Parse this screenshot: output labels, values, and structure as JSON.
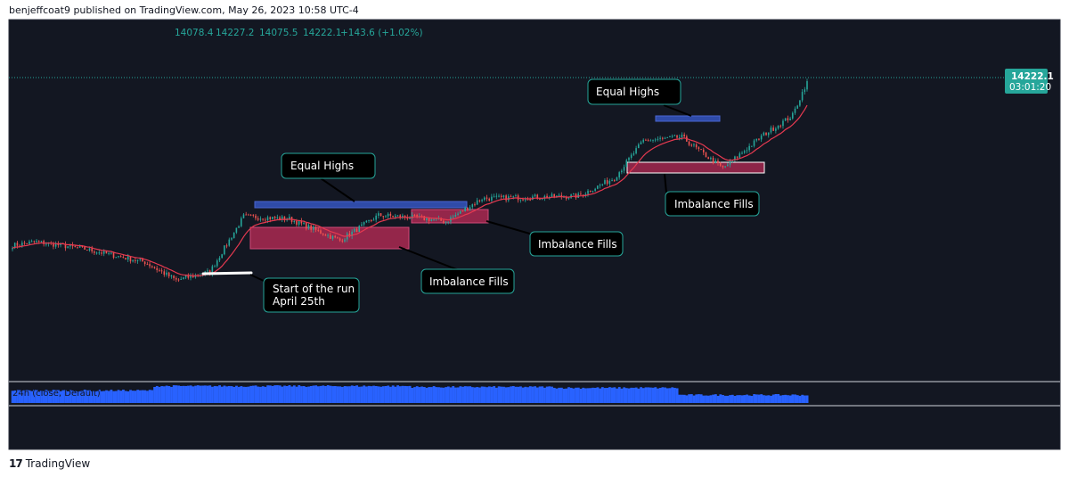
{
  "header": {
    "publisher": "benjeffcoat9 published on TradingView.com, May 26, 2023 10:58 UTC-4"
  },
  "ohlc": {
    "open": "14078.4",
    "high": "14227.2",
    "low": "14075.5",
    "close": "14222.1",
    "change": "+143.6 (+1.02%)"
  },
  "price_label": {
    "price": "14222.1",
    "timer": "03:01:20"
  },
  "annotations": {
    "equal_highs_1": "Equal Highs",
    "equal_highs_2": "Equal Highs",
    "imbalance_1": "Imbalance Fills",
    "imbalance_2": "Imbalance Fills",
    "imbalance_3": "Imbalance Fills",
    "start_line1": "Start of the run",
    "start_line2": "April 25th"
  },
  "volume_label": "24h   (close, Default)",
  "footer": {
    "brand": "TradingView",
    "logo": "17"
  },
  "colors": {
    "background": "#131722",
    "up": "#26a69a",
    "down": "#ef5350",
    "ma": "#e53950",
    "equal_highs_box": "#2f4ba8",
    "imbalance_box": "#a3284f",
    "volume": "#2962ff",
    "callout_border": "#26a69a"
  },
  "chart_data": {
    "type": "candlestick",
    "title": "",
    "last_price": 14222.1,
    "anchors": [
      {
        "i": 0,
        "p": 13540
      },
      {
        "i": 10,
        "p": 13555
      },
      {
        "i": 30,
        "p": 13525
      },
      {
        "i": 55,
        "p": 13470
      },
      {
        "i": 68,
        "p": 13395
      },
      {
        "i": 82,
        "p": 13430
      },
      {
        "i": 96,
        "p": 13660
      },
      {
        "i": 115,
        "p": 13650
      },
      {
        "i": 136,
        "p": 13560
      },
      {
        "i": 152,
        "p": 13665
      },
      {
        "i": 168,
        "p": 13655
      },
      {
        "i": 180,
        "p": 13640
      },
      {
        "i": 195,
        "p": 13735
      },
      {
        "i": 215,
        "p": 13740
      },
      {
        "i": 235,
        "p": 13745
      },
      {
        "i": 250,
        "p": 13820
      },
      {
        "i": 262,
        "p": 13975
      },
      {
        "i": 278,
        "p": 13990
      },
      {
        "i": 285,
        "p": 13935
      },
      {
        "i": 295,
        "p": 13860
      },
      {
        "i": 312,
        "p": 14000
      },
      {
        "i": 324,
        "p": 14080
      },
      {
        "i": 330,
        "p": 14222
      }
    ],
    "volume_levels": [
      {
        "from": 0,
        "to": 58,
        "level": 0.7
      },
      {
        "from": 59,
        "to": 165,
        "level": 0.95
      },
      {
        "from": 166,
        "to": 225,
        "level": 0.9
      },
      {
        "from": 226,
        "to": 276,
        "level": 0.85
      },
      {
        "from": 277,
        "to": 330,
        "level": 0.45
      }
    ]
  }
}
